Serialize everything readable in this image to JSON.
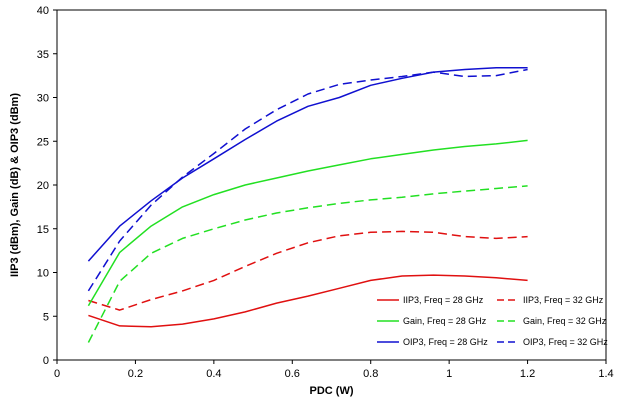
{
  "chart_data": {
    "type": "line",
    "xlabel": "PDC (W)",
    "ylabel": "IIP3 (dBm), Gain (dB) & OIP3 (dBm)",
    "xlim": [
      0,
      1.4
    ],
    "ylim": [
      0,
      40
    ],
    "xticks": [
      "0",
      "0.2",
      "0.4",
      "0.6",
      "0.8",
      "1",
      "1.2",
      "1.4"
    ],
    "yticks": [
      "0",
      "5",
      "10",
      "15",
      "20",
      "25",
      "30",
      "35",
      "40"
    ],
    "grid": true,
    "legend_placement": "bottom-right",
    "series": [
      {
        "name": "IIP3, Freq = 28 GHz",
        "color": "#e01010",
        "dash": "solid",
        "x": [
          0.08,
          0.16,
          0.24,
          0.32,
          0.4,
          0.48,
          0.56,
          0.64,
          0.72,
          0.8,
          0.88,
          0.96,
          1.04,
          1.12,
          1.2
        ],
        "y": [
          5.1,
          3.9,
          3.8,
          4.1,
          4.7,
          5.5,
          6.5,
          7.3,
          8.2,
          9.1,
          9.6,
          9.7,
          9.6,
          9.4,
          9.1
        ]
      },
      {
        "name": "IIP3, Freq = 32 GHz",
        "color": "#e01010",
        "dash": "dashed",
        "x": [
          0.08,
          0.16,
          0.24,
          0.32,
          0.4,
          0.48,
          0.56,
          0.64,
          0.72,
          0.8,
          0.88,
          0.96,
          1.04,
          1.12,
          1.2
        ],
        "y": [
          6.8,
          5.7,
          6.9,
          7.9,
          9.1,
          10.7,
          12.2,
          13.4,
          14.2,
          14.6,
          14.7,
          14.6,
          14.1,
          13.9,
          14.1
        ]
      },
      {
        "name": "Gain, Freq = 28 GHz",
        "color": "#22e022",
        "dash": "solid",
        "x": [
          0.08,
          0.16,
          0.24,
          0.32,
          0.4,
          0.48,
          0.56,
          0.64,
          0.72,
          0.8,
          0.88,
          0.96,
          1.04,
          1.12,
          1.2
        ],
        "y": [
          6.2,
          12.3,
          15.3,
          17.5,
          18.9,
          20.0,
          20.8,
          21.6,
          22.3,
          23.0,
          23.5,
          24.0,
          24.4,
          24.7,
          25.1
        ]
      },
      {
        "name": "Gain, Freq = 32 GHz",
        "color": "#22e022",
        "dash": "dashed",
        "x": [
          0.08,
          0.16,
          0.24,
          0.32,
          0.4,
          0.48,
          0.56,
          0.64,
          0.72,
          0.8,
          0.88,
          0.96,
          1.04,
          1.12,
          1.2
        ],
        "y": [
          2.0,
          9.0,
          12.2,
          13.9,
          15.0,
          16.0,
          16.8,
          17.4,
          17.9,
          18.3,
          18.6,
          19.0,
          19.3,
          19.6,
          19.9
        ]
      },
      {
        "name": "OIP3, Freq = 28 GHz",
        "color": "#1010d0",
        "dash": "solid",
        "x": [
          0.08,
          0.16,
          0.24,
          0.32,
          0.4,
          0.48,
          0.56,
          0.64,
          0.72,
          0.8,
          0.88,
          0.96,
          1.04,
          1.12,
          1.2
        ],
        "y": [
          11.3,
          15.3,
          18.2,
          20.8,
          23.0,
          25.2,
          27.3,
          29.0,
          30.0,
          31.4,
          32.2,
          32.9,
          33.2,
          33.4,
          33.4
        ]
      },
      {
        "name": "OIP3, Freq = 32 GHz",
        "color": "#1010d0",
        "dash": "dashed",
        "x": [
          0.08,
          0.16,
          0.24,
          0.32,
          0.4,
          0.48,
          0.56,
          0.64,
          0.72,
          0.8,
          0.88,
          0.96,
          1.04,
          1.12,
          1.2
        ],
        "y": [
          7.9,
          13.6,
          17.7,
          20.9,
          23.6,
          26.4,
          28.6,
          30.4,
          31.5,
          32.0,
          32.4,
          32.9,
          32.4,
          32.5,
          33.2
        ]
      }
    ]
  }
}
